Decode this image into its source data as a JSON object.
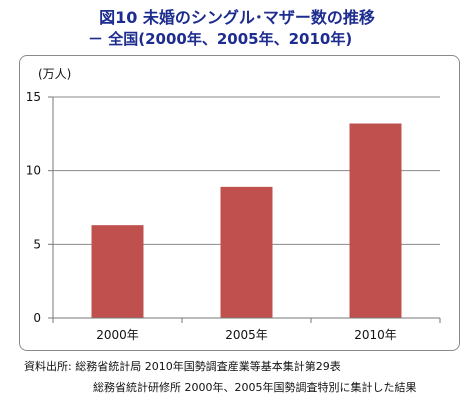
{
  "title": "図10 未婚のシングル･マザー数の推移",
  "subtitle": "－ 全国(2000年、2005年、2010年)",
  "unit_label": "(万人)",
  "source_lines": [
    "資料出所: 総務省統計局 2010年国勢調査産業等基本集計第29表",
    "総務省統計研修所 2000年、2005年国勢調査特別に集計した結果"
  ],
  "colors": {
    "bar": "#c0504d",
    "title": "#1d2c8f",
    "grid": "#8a8a8a"
  },
  "chart_data": {
    "type": "bar",
    "categories": [
      "2000年",
      "2005年",
      "2010年"
    ],
    "values": [
      6.3,
      8.9,
      13.2
    ],
    "ylabel": "(万人)",
    "ylim": [
      0,
      15
    ],
    "yticks": [
      0,
      5,
      10,
      15
    ],
    "grid": true
  }
}
